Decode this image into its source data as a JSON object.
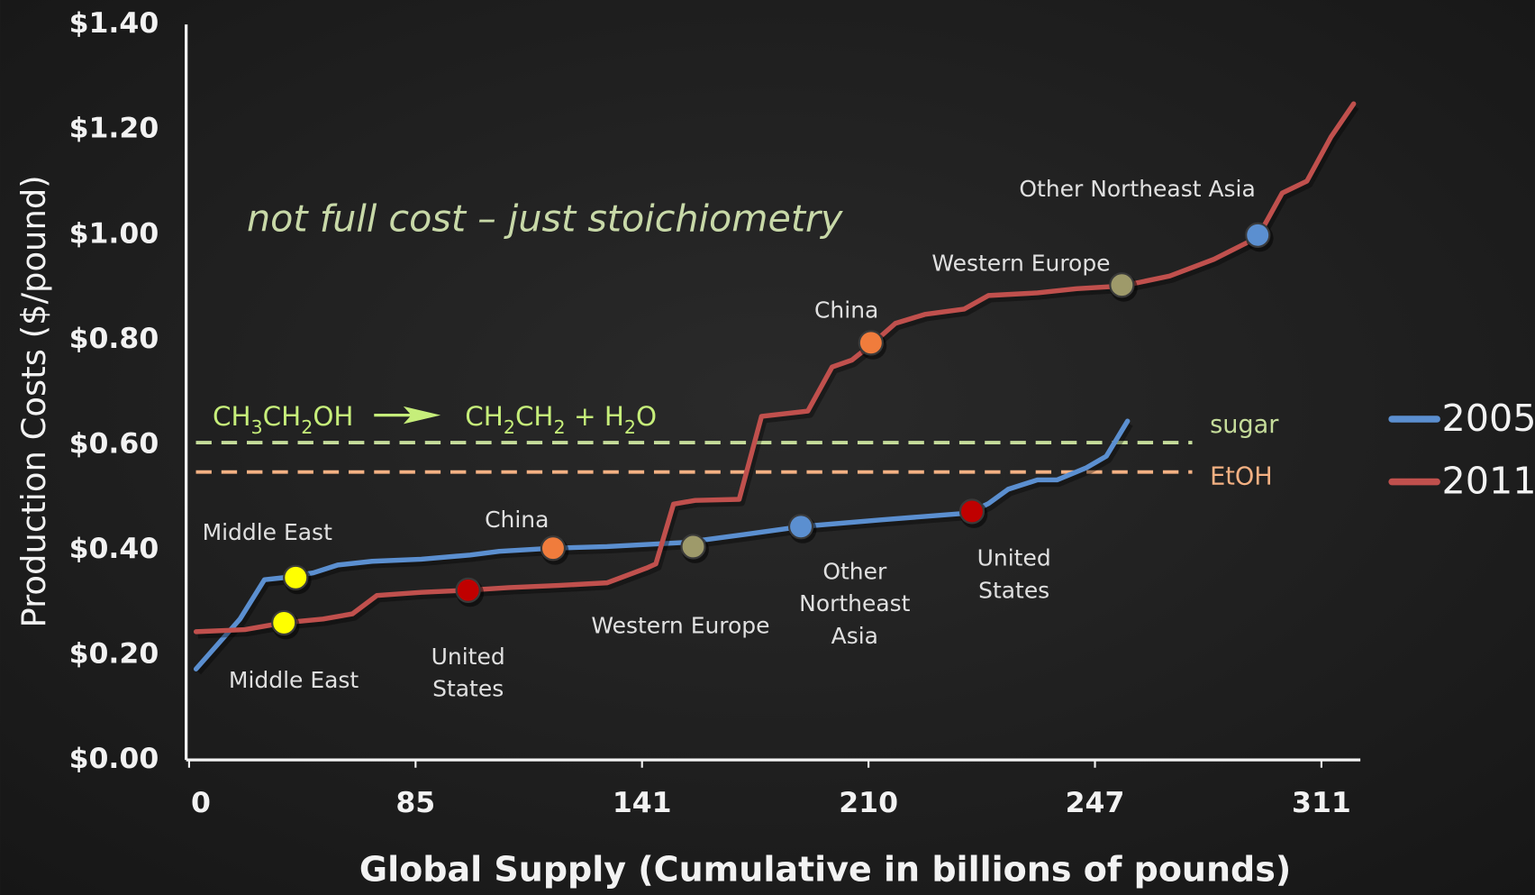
{
  "chart_data": {
    "type": "line",
    "xlabel": "Global Supply (Cumulative in billions of pounds)",
    "ylabel": "Production Costs ($/pound)",
    "xlim": [
      0,
      322
    ],
    "ylim": [
      0,
      1.4
    ],
    "xticks": [
      0,
      85,
      141,
      210,
      247,
      311
    ],
    "yticks": [
      {
        "value": 0,
        "label": "$0.00"
      },
      {
        "value": 0.2,
        "label": "$0.20"
      },
      {
        "value": 0.4,
        "label": "$0.40"
      },
      {
        "value": 0.6,
        "label": "$0.60"
      },
      {
        "value": 0.8,
        "label": "$0.80"
      },
      {
        "value": 1.0,
        "label": "$1.00"
      },
      {
        "value": 1.2,
        "label": "$1.20"
      },
      {
        "value": 1.4,
        "label": "$1.40"
      }
    ],
    "annotation": "not full cost – just stoichiometry",
    "reaction": {
      "reactant": "CH3CH2OH",
      "product": "CH2CH2 + H2O"
    },
    "hlines": [
      {
        "label": "sugar",
        "value": 0.604,
        "color": "#c5dc9a"
      },
      {
        "label": "EtOH",
        "value": 0.548,
        "color": "#f4b183"
      }
    ],
    "series": [
      {
        "name": "2005",
        "color": "#5b8fd0",
        "x": [
          2.6,
          19.1,
          28.3,
          35.6,
          46.6,
          55.8,
          68.7,
          86.4,
          98.5,
          105.7,
          119.0,
          132.3,
          154.2,
          172.1,
          189.4,
          212.0,
          226.4,
          229.6,
          232.8,
          237.6,
          240.8,
          245.6,
          250.2,
          256.2
        ],
        "values": [
          0.173,
          0.268,
          0.343,
          0.347,
          0.356,
          0.371,
          0.378,
          0.382,
          0.39,
          0.397,
          0.403,
          0.406,
          0.414,
          0.429,
          0.444,
          0.457,
          0.47,
          0.488,
          0.515,
          0.533,
          0.533,
          0.556,
          0.578,
          0.645
        ],
        "points": [
          {
            "label": [
              "Middle East"
            ],
            "x": 40.0,
            "y": 0.347,
            "color": "#ffff00"
          },
          {
            "label": [
              "China"
            ],
            "x": 119.0,
            "y": 0.403,
            "color": "#f07c3c"
          },
          {
            "label": [
              "Western Europe"
            ],
            "x": 156.6,
            "y": 0.406,
            "color": "#9e9a6a"
          },
          {
            "label": [
              "Other",
              "Northeast",
              "Asia"
            ],
            "x": 189.4,
            "y": 0.444,
            "color": "#5b8fd0"
          },
          {
            "label": [
              "United",
              "States"
            ],
            "x": 226.9,
            "y": 0.473,
            "color": "#c00000"
          }
        ]
      },
      {
        "name": "2011",
        "color": "#c0504d",
        "x": [
          2.6,
          20.9,
          35.6,
          50.3,
          61.3,
          70.5,
          86.4,
          98.0,
          108.1,
          120.2,
          132.3,
          142.3,
          145.2,
          150.6,
          157.2,
          170.6,
          177.4,
          191.5,
          198.9,
          204.9,
          210.4,
          214.4,
          219.2,
          225.6,
          229.6,
          237.6,
          244.0,
          254.6,
          268.1,
          280.6,
          293.0,
          299.9,
          306.9,
          313.7,
          320.1
        ],
        "values": [
          0.244,
          0.248,
          0.261,
          0.268,
          0.278,
          0.313,
          0.319,
          0.323,
          0.328,
          0.332,
          0.337,
          0.365,
          0.373,
          0.487,
          0.494,
          0.496,
          0.654,
          0.664,
          0.748,
          0.761,
          0.79,
          0.831,
          0.848,
          0.858,
          0.884,
          0.889,
          0.897,
          0.902,
          0.921,
          0.953,
          0.995,
          1.079,
          1.102,
          1.186,
          1.249
        ],
        "points": [
          {
            "label": [
              "Middle East"
            ],
            "x": 35.6,
            "y": 0.261,
            "color": "#ffff00"
          },
          {
            "label": [
              "United",
              "States"
            ],
            "x": 98.0,
            "y": 0.323,
            "color": "#c00000"
          },
          {
            "label": [
              "China"
            ],
            "x": 210.4,
            "y": 0.794,
            "color": "#f07c3c"
          },
          {
            "label": [
              "Western Europe"
            ],
            "x": 254.6,
            "y": 0.904,
            "color": "#9e9a6a"
          },
          {
            "label": [
              "Other Northeast Asia"
            ],
            "x": 293.0,
            "y": 0.999,
            "color": "#5b8fd0"
          }
        ]
      }
    ]
  }
}
